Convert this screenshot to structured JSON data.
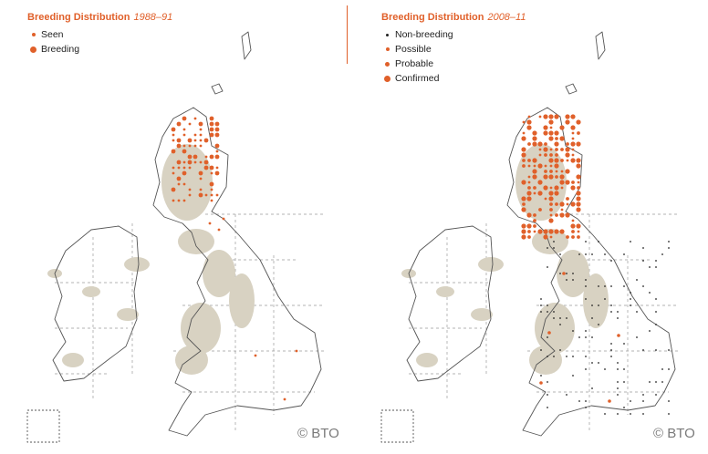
{
  "colors": {
    "accent": "#e0602a",
    "record_dot": "#e0602a",
    "non_breeding_dot": "#222222",
    "upland_fill": "#d8d2c2",
    "coastline": "#555555",
    "grid_lines": "#9a9a9a"
  },
  "left_panel": {
    "title": "Breeding Distribution",
    "years": "1988–91",
    "legend": [
      {
        "label": "Seen",
        "dot": "small"
      },
      {
        "label": "Breeding",
        "dot": "large"
      }
    ],
    "credit": "© BTO"
  },
  "right_panel": {
    "title": "Breeding Distribution",
    "years": "2008–11",
    "legend": [
      {
        "label": "Non-breeding",
        "dot": "black"
      },
      {
        "label": "Possible",
        "dot": "small"
      },
      {
        "label": "Probable",
        "dot": "medium"
      },
      {
        "label": "Confirmed",
        "dot": "large"
      }
    ],
    "credit": "© BTO"
  }
}
